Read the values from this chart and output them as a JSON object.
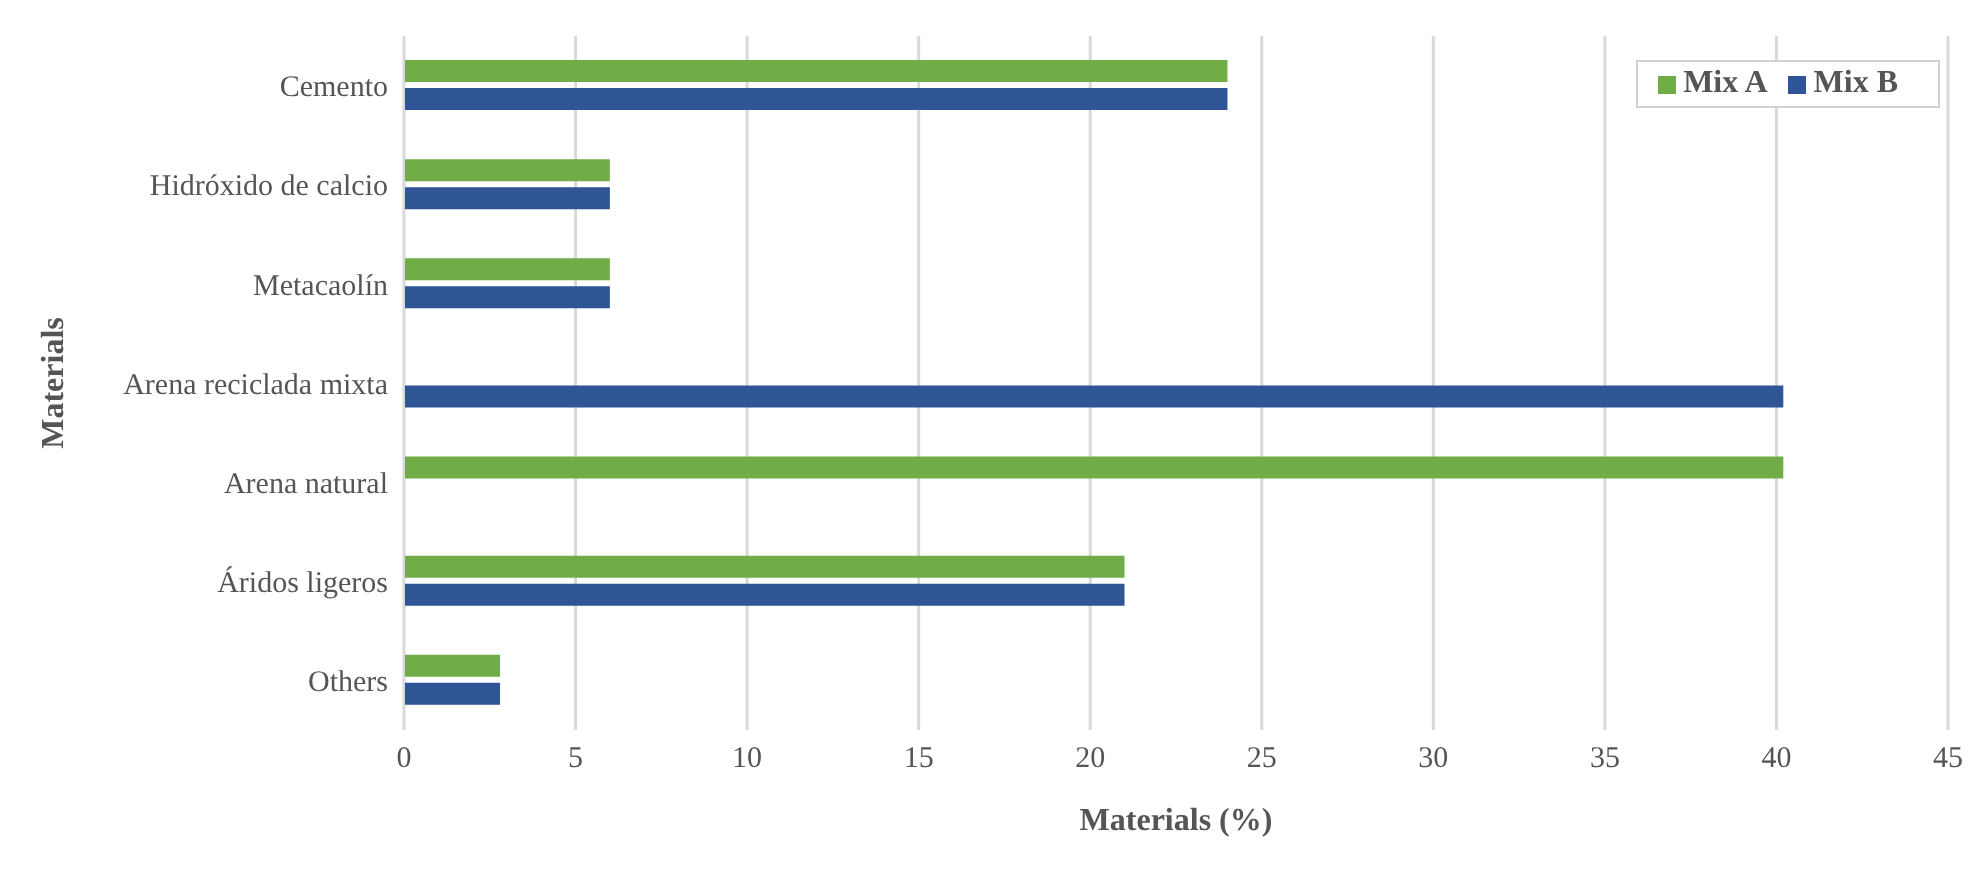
{
  "chart_data": {
    "type": "bar",
    "orientation": "horizontal",
    "xlabel": "Materials (%)",
    "ylabel": "Materials",
    "categories": [
      "Cemento",
      "Hidróxido de calcio",
      "Metacaolín",
      "Arena reciclada mixta",
      "Arena natural",
      "Áridos ligeros",
      "Others"
    ],
    "series": [
      {
        "name": "Mix A",
        "color": "#70ad47",
        "values": [
          24,
          6,
          6,
          null,
          40.2,
          21,
          2.8
        ]
      },
      {
        "name": "Mix B",
        "color": "#2f5597",
        "values": [
          24,
          6,
          6,
          40.2,
          null,
          21,
          2.8
        ]
      }
    ],
    "xlim": [
      0,
      45
    ],
    "xticks": [
      0,
      5,
      10,
      15,
      20,
      25,
      30,
      35,
      40,
      45
    ],
    "grid": "x",
    "legend": "top right"
  }
}
